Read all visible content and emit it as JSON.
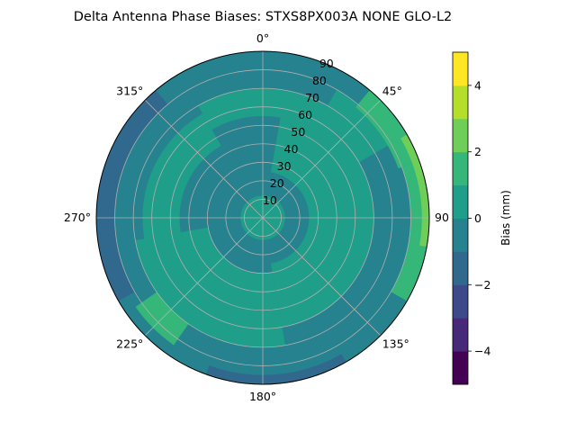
{
  "chart_data": {
    "type": "polar-contour",
    "title": "Delta Antenna Phase Biases: STXS8PX003A     NONE GLO-L2",
    "theta_ticks": [
      {
        "deg": 0,
        "label": "0°"
      },
      {
        "deg": 45,
        "label": "45°"
      },
      {
        "deg": 90,
        "label": "90"
      },
      {
        "deg": 135,
        "label": "135°"
      },
      {
        "deg": 180,
        "label": "180°"
      },
      {
        "deg": 225,
        "label": "225°"
      },
      {
        "deg": 270,
        "label": "270°"
      },
      {
        "deg": 315,
        "label": "315°"
      }
    ],
    "r_ticks": [
      10,
      20,
      30,
      40,
      50,
      60,
      70,
      80,
      90
    ],
    "r_range": [
      0,
      90
    ],
    "theta_direction": "clockwise",
    "theta_zero": "top",
    "grid": true,
    "colorbar": {
      "label": "Bias (mm)",
      "range": [
        -5,
        5
      ],
      "levels": [
        -5,
        -4,
        -3,
        -2,
        -1,
        0,
        1,
        2,
        3,
        4,
        5
      ],
      "ticks": [
        -4,
        -2,
        0,
        2,
        4
      ],
      "colors": [
        "#440154",
        "#482878",
        "#3e4989",
        "#31688e",
        "#26828e",
        "#1f9e89",
        "#35b779",
        "#6ece58",
        "#b5de2b",
        "#fde725"
      ]
    },
    "regions": [
      {
        "value": -0.5,
        "theta": [
          0,
          360
        ],
        "r": [
          0,
          90
        ]
      },
      {
        "value": 0.5,
        "theta": [
          0,
          360
        ],
        "r": [
          0,
          12
        ]
      },
      {
        "value": 0.5,
        "theta": [
          10,
          170
        ],
        "r": [
          25,
          60
        ]
      },
      {
        "value": 0.5,
        "theta": [
          170,
          260
        ],
        "r": [
          30,
          70
        ]
      },
      {
        "value": 0.5,
        "theta": [
          250,
          330
        ],
        "r": [
          45,
          65
        ]
      },
      {
        "value": 0.5,
        "theta": [
          330,
          40
        ],
        "r": [
          55,
          70
        ]
      },
      {
        "value": 0.5,
        "theta": [
          30,
          60
        ],
        "r": [
          60,
          80
        ]
      },
      {
        "value": 1.5,
        "theta": [
          40,
          70
        ],
        "r": [
          78,
          90
        ]
      },
      {
        "value": 1.5,
        "theta": [
          70,
          120
        ],
        "r": [
          80,
          90
        ]
      },
      {
        "value": 2.5,
        "theta": [
          60,
          100
        ],
        "r": [
          86,
          90
        ]
      },
      {
        "value": -1.5,
        "theta": [
          240,
          320
        ],
        "r": [
          80,
          90
        ]
      },
      {
        "value": -1.5,
        "theta": [
          150,
          200
        ],
        "r": [
          85,
          90
        ]
      },
      {
        "value": 1.5,
        "theta": [
          215,
          235
        ],
        "r": [
          70,
          84
        ]
      }
    ]
  }
}
